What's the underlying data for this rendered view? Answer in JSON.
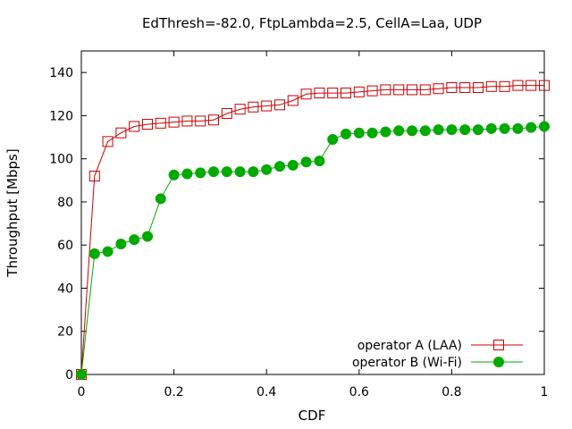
{
  "chart_data": {
    "type": "line",
    "title": "EdThresh=-82.0, FtpLambda=2.5, CellA=Laa, UDP",
    "xlabel": "CDF",
    "ylabel": "Throughput [Mbps]",
    "xlim": [
      0,
      1
    ],
    "ylim": [
      0,
      150
    ],
    "xticks": [
      0,
      0.2,
      0.4,
      0.6,
      0.8,
      1
    ],
    "xtick_labels": [
      "0",
      "0.2",
      "0.4",
      "0.6",
      "0.8",
      "1"
    ],
    "yticks": [
      0,
      20,
      40,
      60,
      80,
      100,
      120,
      140
    ],
    "ytick_labels": [
      "0",
      "20",
      "40",
      "60",
      "80",
      "100",
      "120",
      "140"
    ],
    "grid": false,
    "legend_position": "bottom-right",
    "series": [
      {
        "name": "operator A (LAA)",
        "color": "#cc0000",
        "marker": "open-square",
        "x": [
          0,
          0.0286,
          0.0571,
          0.0857,
          0.1143,
          0.1429,
          0.1714,
          0.2,
          0.2286,
          0.2571,
          0.2857,
          0.3143,
          0.3429,
          0.3714,
          0.4,
          0.4286,
          0.4571,
          0.4857,
          0.5143,
          0.5429,
          0.5714,
          0.6,
          0.6286,
          0.6571,
          0.6857,
          0.7143,
          0.7429,
          0.7714,
          0.8,
          0.8286,
          0.8571,
          0.8857,
          0.9143,
          0.9429,
          0.9714,
          1.0
        ],
        "y": [
          0,
          92,
          108,
          112,
          115,
          116,
          116.5,
          117,
          117.5,
          117.5,
          118,
          121,
          123,
          124,
          124.5,
          125,
          127,
          130,
          130.5,
          130.5,
          130.5,
          131,
          131.5,
          132,
          132,
          132,
          132,
          132.5,
          133,
          133,
          133,
          133.5,
          133.5,
          134,
          134,
          134
        ]
      },
      {
        "name": "operator B (Wi-Fi)",
        "color": "#00aa00",
        "marker": "filled-circle",
        "x": [
          0,
          0.0286,
          0.0571,
          0.0857,
          0.1143,
          0.1429,
          0.1714,
          0.2,
          0.2286,
          0.2571,
          0.2857,
          0.3143,
          0.3429,
          0.3714,
          0.4,
          0.4286,
          0.4571,
          0.4857,
          0.5143,
          0.5429,
          0.5714,
          0.6,
          0.6286,
          0.6571,
          0.6857,
          0.7143,
          0.7429,
          0.7714,
          0.8,
          0.8286,
          0.8571,
          0.8857,
          0.9143,
          0.9429,
          0.9714,
          1.0
        ],
        "y": [
          0,
          56,
          57,
          60.5,
          62.5,
          64,
          81.5,
          92.5,
          93,
          93.5,
          94,
          94,
          94,
          94,
          95,
          96.5,
          97,
          98.5,
          99,
          109,
          111.5,
          112,
          112,
          112.5,
          113,
          113,
          113,
          113.5,
          113.5,
          113.5,
          113.5,
          114,
          114,
          114,
          114.5,
          115
        ]
      }
    ]
  }
}
